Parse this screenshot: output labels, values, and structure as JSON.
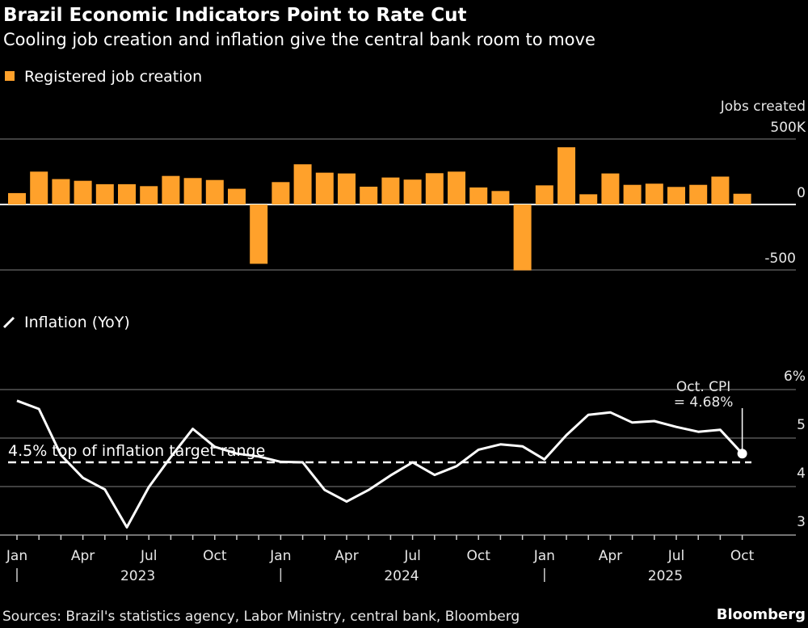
{
  "title": "Brazil Economic Indicators Point to Rate Cut",
  "subtitle": "Cooling job creation and inflation give the central bank room to move",
  "source": "Sources: Brazil's statistics agency, Labor Ministry, central bank, Bloomberg",
  "brand": "Bloomberg",
  "colors": {
    "background": "#000000",
    "bars": "#ffa12b",
    "line": "#ffffff",
    "grid": "#555555"
  },
  "chart_data": [
    {
      "type": "bar",
      "legend": "Registered job creation",
      "legend_icon": "orange-square",
      "ylabel": "Jobs created",
      "yticks": [
        "500K",
        "0",
        "-500"
      ],
      "ytick_values": [
        500,
        0,
        -500
      ],
      "ylim": [
        -500,
        500
      ],
      "grid": true,
      "x": [
        "2023-01",
        "2023-02",
        "2023-03",
        "2023-04",
        "2023-05",
        "2023-06",
        "2023-07",
        "2023-08",
        "2023-09",
        "2023-10",
        "2023-11",
        "2023-12",
        "2024-01",
        "2024-02",
        "2024-03",
        "2024-04",
        "2024-05",
        "2024-06",
        "2024-07",
        "2024-08",
        "2024-09",
        "2024-10",
        "2024-11",
        "2024-12",
        "2025-01",
        "2025-02",
        "2025-03",
        "2025-04",
        "2025-05",
        "2025-06",
        "2025-07",
        "2025-08",
        "2025-09",
        "2025-10"
      ],
      "values": [
        87,
        251,
        194,
        181,
        155,
        155,
        140,
        218,
        202,
        187,
        120,
        -453,
        171,
        307,
        243,
        237,
        136,
        206,
        190,
        239,
        251,
        130,
        103,
        -503,
        146,
        437,
        78,
        237,
        150,
        159,
        134,
        150,
        213,
        82
      ]
    },
    {
      "type": "line",
      "legend": "Inflation (YoY)",
      "legend_icon": "white-line",
      "yticks": [
        "6%",
        "5",
        "4",
        "3"
      ],
      "ytick_values": [
        6,
        5,
        4,
        3
      ],
      "ylim": [
        3,
        6
      ],
      "grid": true,
      "x": [
        "2023-01",
        "2023-02",
        "2023-03",
        "2023-04",
        "2023-05",
        "2023-06",
        "2023-07",
        "2023-08",
        "2023-09",
        "2023-10",
        "2023-11",
        "2023-12",
        "2024-01",
        "2024-02",
        "2024-03",
        "2024-04",
        "2024-05",
        "2024-06",
        "2024-07",
        "2024-08",
        "2024-09",
        "2024-10",
        "2024-11",
        "2024-12",
        "2025-01",
        "2025-02",
        "2025-03",
        "2025-04",
        "2025-05",
        "2025-06",
        "2025-07",
        "2025-08",
        "2025-09",
        "2025-10"
      ],
      "values": [
        5.77,
        5.6,
        4.65,
        4.18,
        3.94,
        3.16,
        3.99,
        4.61,
        5.19,
        4.82,
        4.68,
        4.62,
        4.51,
        4.5,
        3.93,
        3.69,
        3.93,
        4.23,
        4.5,
        4.24,
        4.42,
        4.76,
        4.87,
        4.83,
        4.56,
        5.06,
        5.48,
        5.53,
        5.32,
        5.35,
        5.23,
        5.13,
        5.17,
        4.68
      ],
      "reference_line": {
        "value": 4.5,
        "label": "4.5% top of inflation target range",
        "style": "dashed"
      },
      "annotation": {
        "line1": "Oct. CPI",
        "line2": "= 4.68%",
        "x": "2025-10",
        "value": 4.68
      }
    }
  ],
  "xaxis": {
    "month_labels": [
      {
        "i": 0,
        "t": "Jan"
      },
      {
        "i": 3,
        "t": "Apr"
      },
      {
        "i": 6,
        "t": "Jul"
      },
      {
        "i": 9,
        "t": "Oct"
      },
      {
        "i": 12,
        "t": "Jan"
      },
      {
        "i": 15,
        "t": "Apr"
      },
      {
        "i": 18,
        "t": "Jul"
      },
      {
        "i": 21,
        "t": "Oct"
      },
      {
        "i": 24,
        "t": "Jan"
      },
      {
        "i": 27,
        "t": "Apr"
      },
      {
        "i": 30,
        "t": "Jul"
      },
      {
        "i": 33,
        "t": "Oct"
      }
    ],
    "years": [
      "2023",
      "2024",
      "2025"
    ]
  }
}
